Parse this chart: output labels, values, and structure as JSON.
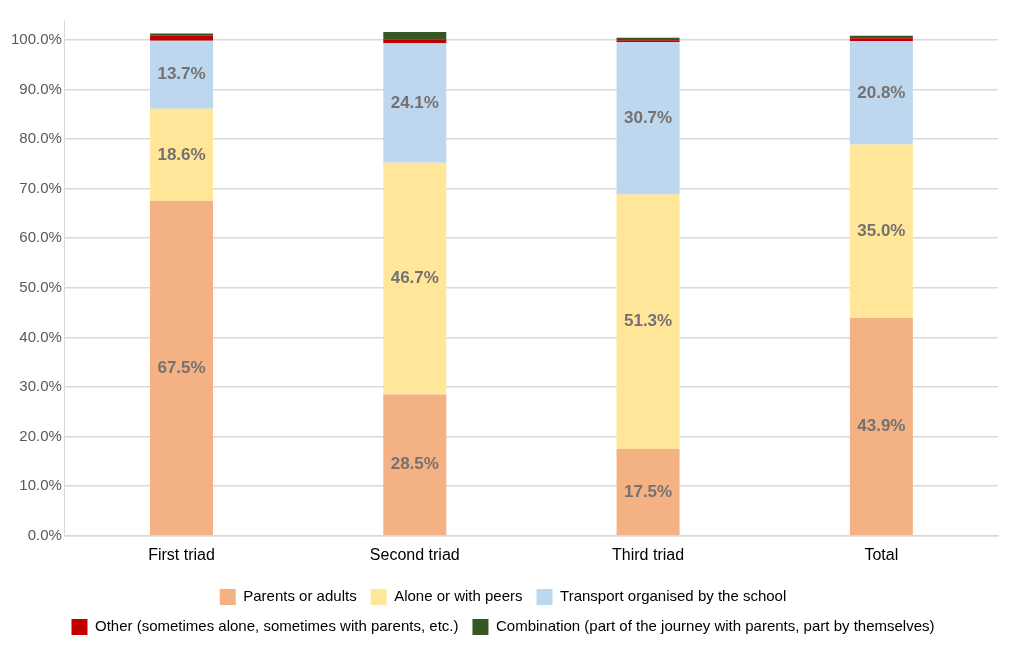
{
  "chart_data": {
    "type": "bar",
    "stacked": true,
    "categories": [
      "First triad",
      "Second triad",
      "Third triad",
      "Total"
    ],
    "series": [
      {
        "name": "Parents or adults",
        "color": "#f4b183",
        "values": [
          67.5,
          28.5,
          17.5,
          43.9
        ],
        "value_labels": [
          "67.5%",
          "28.5%",
          "17.5%",
          "43.9%"
        ]
      },
      {
        "name": "Alone or with peers",
        "color": "#ffe699",
        "values": [
          18.6,
          46.7,
          51.3,
          35.0
        ],
        "value_labels": [
          "18.6%",
          "46.7%",
          "51.3%",
          "35.0%"
        ]
      },
      {
        "name": "Transport organised by the school",
        "color": "#bdd7ee",
        "values": [
          13.7,
          24.1,
          30.7,
          20.8
        ],
        "value_labels": [
          "13.7%",
          "24.1%",
          "30.7%",
          "20.8%"
        ]
      },
      {
        "name": "Other (sometimes alone, sometimes with parents, etc.)",
        "color": "#c00000",
        "values": [
          1.0,
          0.8,
          0.4,
          0.6
        ]
      },
      {
        "name": "Combination (part of the journey with parents, part by themselves)",
        "color": "#375623",
        "values": [
          0.5,
          1.5,
          0.5,
          0.5
        ]
      }
    ],
    "ylim": [
      0,
      104
    ],
    "yticks": [
      {
        "value": 0,
        "label": "0.0%"
      },
      {
        "value": 10,
        "label": "10.0%"
      },
      {
        "value": 20,
        "label": "20.0%"
      },
      {
        "value": 30,
        "label": "30.0%"
      },
      {
        "value": 40,
        "label": "40.0%"
      },
      {
        "value": 50,
        "label": "50.0%"
      },
      {
        "value": 60,
        "label": "60.0%"
      },
      {
        "value": 70,
        "label": "70.0%"
      },
      {
        "value": 80,
        "label": "80.0%"
      },
      {
        "value": 90,
        "label": "90.0%"
      },
      {
        "value": 100,
        "label": "100.0%"
      }
    ],
    "grid": "y",
    "legend": "bottom"
  }
}
